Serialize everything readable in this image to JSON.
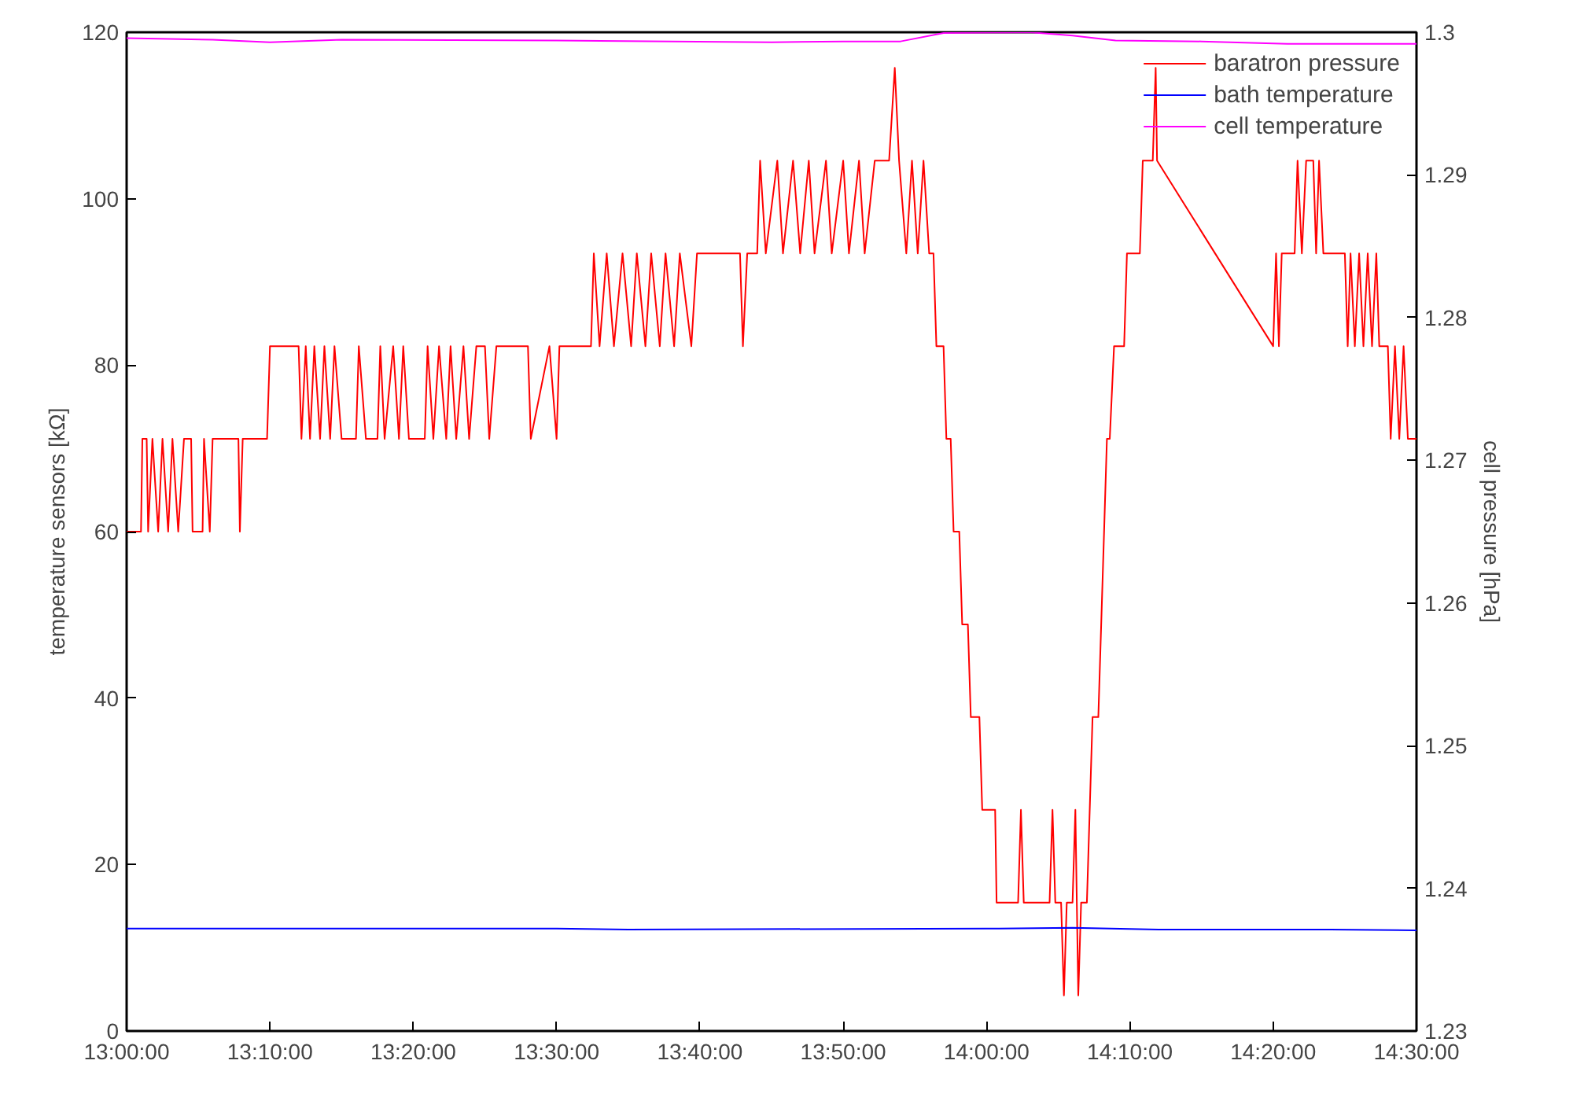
{
  "chart_data": {
    "type": "line",
    "ylabel": "temperature sensors [kΩ]",
    "y2label": "cell pressure [hPa]",
    "xlim": [
      13.0,
      14.5
    ],
    "xticks": [
      {
        "value": 13.0,
        "label": "13:00:00"
      },
      {
        "value": 13.1667,
        "label": "13:10:00"
      },
      {
        "value": 13.3333,
        "label": "13:20:00"
      },
      {
        "value": 13.5,
        "label": "13:30:00"
      },
      {
        "value": 13.6667,
        "label": "13:40:00"
      },
      {
        "value": 13.8333,
        "label": "13:50:00"
      },
      {
        "value": 14.0,
        "label": "14:00:00"
      },
      {
        "value": 14.1667,
        "label": "14:10:00"
      },
      {
        "value": 14.3333,
        "label": "14:20:00"
      },
      {
        "value": 14.5,
        "label": "14:30:00"
      }
    ],
    "ylim": [
      0,
      120
    ],
    "yticks": [
      0,
      20,
      40,
      60,
      80,
      100,
      120
    ],
    "y2lim": [
      1.23,
      1.3
    ],
    "y2ticks": [
      1.23,
      1.24,
      1.25,
      1.26,
      1.27,
      1.28,
      1.29,
      1.3
    ],
    "grid": false,
    "legend": "top right",
    "line_style": "solid",
    "marker": "none",
    "series": [
      {
        "name": "baratron pressure",
        "color": "#ff0000",
        "axis": "y2",
        "x": [
          13.0,
          13.0167,
          13.0183,
          13.0233,
          13.025,
          13.03,
          13.0367,
          13.0417,
          13.0483,
          13.0533,
          13.06,
          13.0667,
          13.075,
          13.0767,
          13.0883,
          13.09,
          13.0967,
          13.1,
          13.13,
          13.1317,
          13.135,
          13.1633,
          13.1667,
          13.2,
          13.2033,
          13.2083,
          13.2133,
          13.2183,
          13.225,
          13.23,
          13.2367,
          13.2417,
          13.25,
          13.2667,
          13.27,
          13.2783,
          13.2917,
          13.295,
          13.3,
          13.31,
          13.3167,
          13.3217,
          13.3283,
          13.3467,
          13.35,
          13.3567,
          13.3633,
          13.3717,
          13.3767,
          13.3833,
          13.3917,
          13.3983,
          13.4067,
          13.4167,
          13.4217,
          13.43,
          13.4667,
          13.47,
          13.4917,
          13.5,
          13.5033,
          13.54,
          13.5433,
          13.55,
          13.5583,
          13.5667,
          13.5767,
          13.5867,
          13.5933,
          13.6033,
          13.61,
          13.62,
          13.6267,
          13.6367,
          13.6433,
          13.6567,
          13.6633,
          13.7133,
          13.7167,
          13.7217,
          13.7333,
          13.7367,
          13.7433,
          13.7567,
          13.7633,
          13.775,
          13.7833,
          13.7933,
          13.8,
          13.8133,
          13.82,
          13.8333,
          13.84,
          13.8517,
          13.8583,
          13.87,
          13.8867,
          13.8933,
          13.8983,
          13.9067,
          13.9133,
          13.92,
          13.9267,
          13.9333,
          13.9383,
          13.9417,
          13.95,
          13.9533,
          13.9583,
          13.9617,
          13.9683,
          13.9717,
          13.9783,
          13.9817,
          13.9917,
          13.995,
          14.01,
          14.0117,
          14.0367,
          14.04,
          14.0433,
          14.0733,
          14.0767,
          14.08,
          14.0867,
          14.09,
          14.0933,
          14.1,
          14.1033,
          14.1067,
          14.11,
          14.1167,
          14.1233,
          14.13,
          14.1367,
          14.14,
          14.1433,
          14.1483,
          14.16,
          14.1633,
          14.1783,
          14.1817,
          14.1933,
          14.1967,
          14.1983,
          14.3333,
          14.3367,
          14.34,
          14.3433,
          14.3583,
          14.3617,
          14.3667,
          14.3717,
          14.38,
          14.3833,
          14.3867,
          14.3917,
          14.4167,
          14.42,
          14.4233,
          14.4283,
          14.4333,
          14.4383,
          14.4433,
          14.4483,
          14.4533,
          14.4567,
          14.4667,
          14.47,
          14.475,
          14.48,
          14.485,
          14.49,
          14.5
        ],
        "values": [
          1.265,
          1.265,
          1.2715,
          1.2715,
          1.265,
          1.2715,
          1.265,
          1.2715,
          1.265,
          1.2715,
          1.265,
          1.2715,
          1.2715,
          1.265,
          1.265,
          1.2715,
          1.265,
          1.2715,
          1.2715,
          1.265,
          1.2715,
          1.2715,
          1.278,
          1.278,
          1.2715,
          1.278,
          1.2715,
          1.278,
          1.2715,
          1.278,
          1.2715,
          1.278,
          1.2715,
          1.2715,
          1.278,
          1.2715,
          1.2715,
          1.278,
          1.2715,
          1.278,
          1.2715,
          1.278,
          1.2715,
          1.2715,
          1.278,
          1.2715,
          1.278,
          1.2715,
          1.278,
          1.2715,
          1.278,
          1.2715,
          1.278,
          1.278,
          1.2715,
          1.278,
          1.278,
          1.2715,
          1.278,
          1.2715,
          1.278,
          1.278,
          1.2845,
          1.278,
          1.2845,
          1.278,
          1.2845,
          1.278,
          1.2845,
          1.278,
          1.2845,
          1.278,
          1.2845,
          1.278,
          1.2845,
          1.278,
          1.2845,
          1.2845,
          1.278,
          1.2845,
          1.2845,
          1.291,
          1.2845,
          1.291,
          1.2845,
          1.291,
          1.2845,
          1.291,
          1.2845,
          1.291,
          1.2845,
          1.291,
          1.2845,
          1.291,
          1.2845,
          1.291,
          1.291,
          1.2975,
          1.291,
          1.2845,
          1.291,
          1.2845,
          1.291,
          1.2845,
          1.2845,
          1.278,
          1.278,
          1.2715,
          1.2715,
          1.265,
          1.265,
          1.2585,
          1.2585,
          1.252,
          1.252,
          1.2455,
          1.2455,
          1.239,
          1.239,
          1.2455,
          1.239,
          1.239,
          1.2455,
          1.239,
          1.239,
          1.2325,
          1.239,
          1.239,
          1.2455,
          1.2325,
          1.239,
          1.239,
          1.252,
          1.252,
          1.265,
          1.2715,
          1.2715,
          1.278,
          1.278,
          1.2845,
          1.2845,
          1.291,
          1.291,
          1.2975,
          1.291,
          1.278,
          1.2845,
          1.278,
          1.2845,
          1.2845,
          1.291,
          1.2845,
          1.291,
          1.291,
          1.2845,
          1.291,
          1.2845,
          1.2845,
          1.278,
          1.2845,
          1.278,
          1.2845,
          1.278,
          1.2845,
          1.278,
          1.2845,
          1.278,
          1.278,
          1.2715,
          1.278,
          1.2715,
          1.278,
          1.2715,
          1.2715
        ]
      },
      {
        "name": "bath temperature",
        "color": "#0000ff",
        "x": [
          13.0,
          13.5,
          13.5833,
          14.0,
          14.1,
          14.2,
          14.4,
          14.5
        ],
        "values": [
          12.3,
          12.3,
          12.2,
          12.3,
          12.4,
          12.2,
          12.2,
          12.1
        ]
      },
      {
        "name": "cell temperature",
        "color": "#ff00ff",
        "x": [
          13.0,
          13.1,
          13.1667,
          13.25,
          13.5,
          13.75,
          13.8333,
          13.9,
          13.95,
          14.05,
          14.1,
          14.15,
          14.25,
          14.35,
          14.5
        ],
        "values": [
          119.3,
          119.1,
          118.8,
          119.1,
          119.0,
          118.8,
          118.9,
          118.9,
          119.9,
          120.0,
          119.6,
          119.0,
          118.9,
          118.6,
          118.6
        ]
      }
    ]
  }
}
